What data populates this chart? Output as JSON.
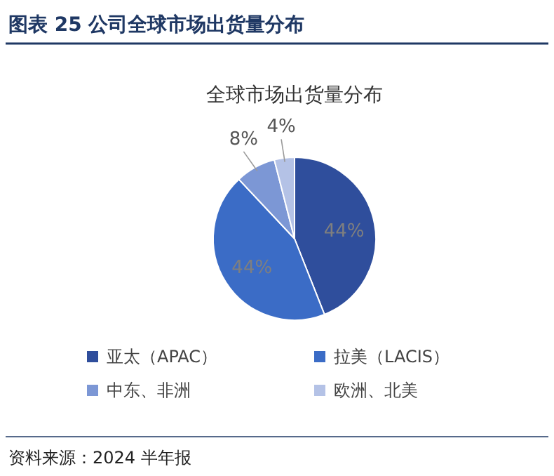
{
  "chart_data": {
    "type": "pie",
    "title": "图表 25 公司全球市场出货量分布",
    "subtitle": "全球市场出货量分布",
    "categories": [
      "亚太（APAC）",
      "拉美（LACIS）",
      "中东、非洲",
      "欧洲、北美"
    ],
    "values": [
      44,
      44,
      8,
      4
    ],
    "colors": [
      "#2f4e9c",
      "#3b6cc6",
      "#7c97d5",
      "#b4c2e6"
    ],
    "value_labels": [
      "44%",
      "44%",
      "8%",
      "4%"
    ],
    "legend": "bottom",
    "annotations": [
      "资料来源：2024 半年报"
    ]
  }
}
